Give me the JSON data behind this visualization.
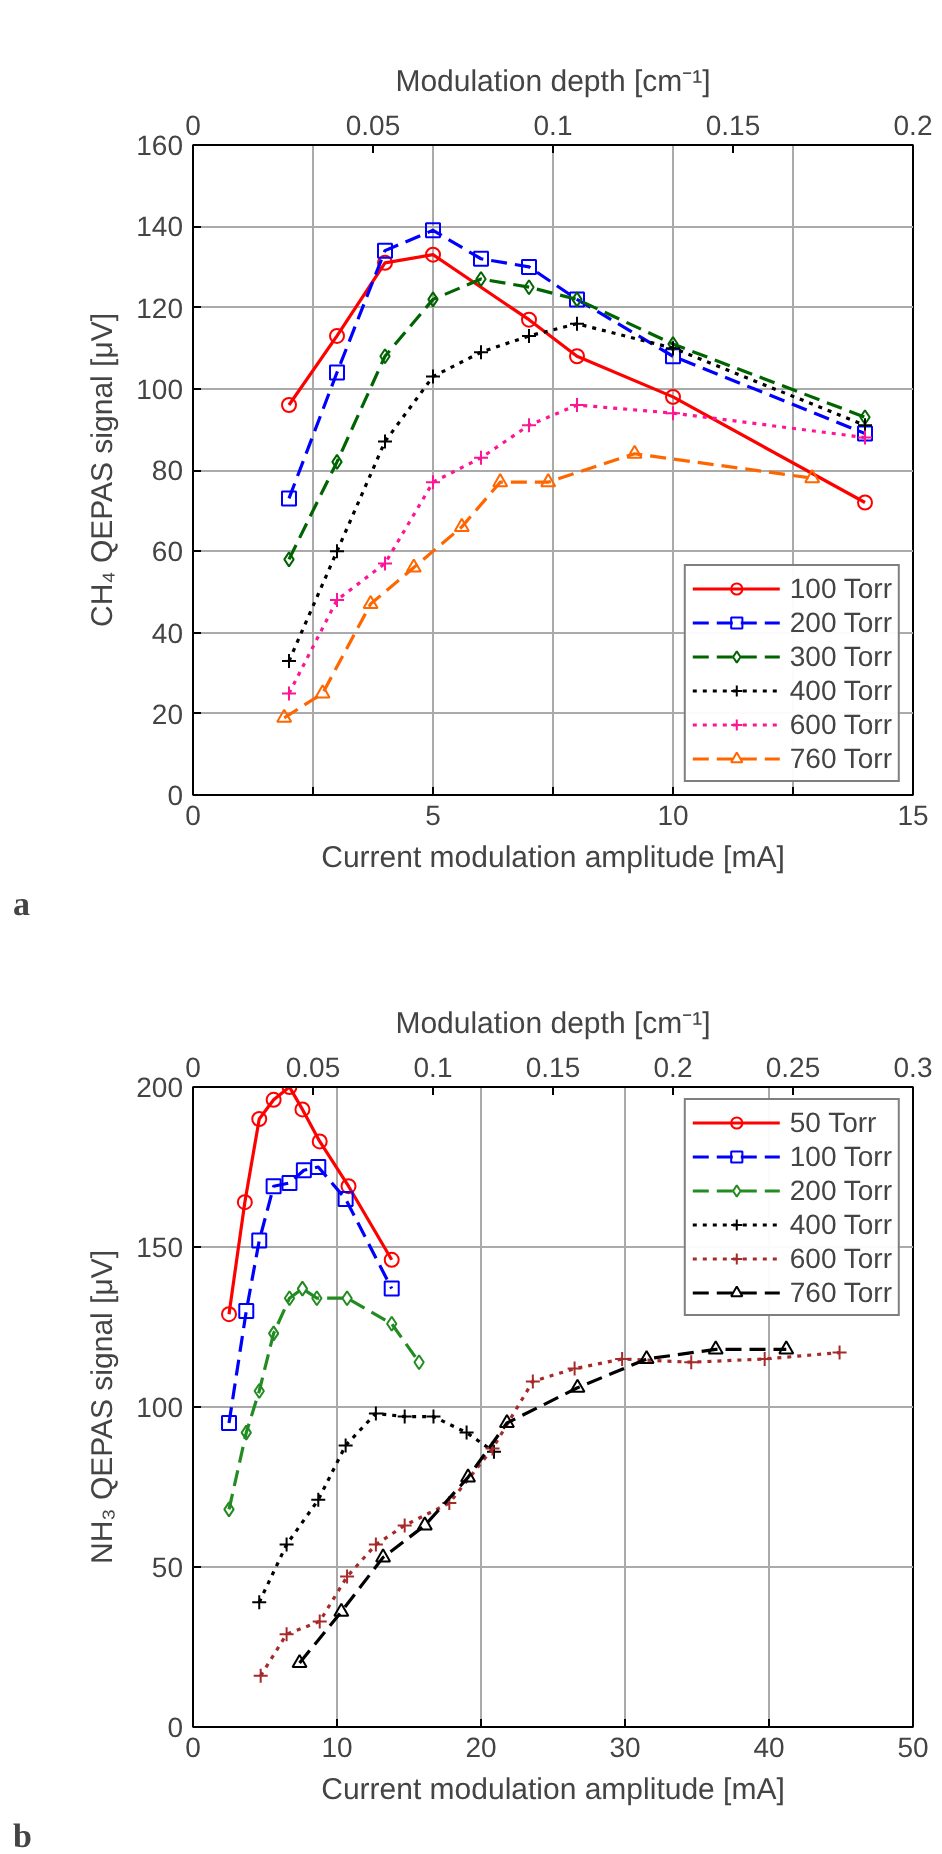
{
  "chart_data": [
    {
      "type": "line",
      "xlabel": "Current modulation amplitude [mA]",
      "ylabel": "CH₄ QEPAS signal [μV]",
      "x2label": "Modulation depth [cm⁻¹]",
      "xlim": [
        0,
        15
      ],
      "xticks": [
        0,
        {
          "value": 2.5,
          "label": null
        },
        5,
        {
          "value": 7.5,
          "label": null
        },
        10,
        {
          "value": 12.5,
          "label": null
        },
        15
      ],
      "ylim": [
        0,
        160
      ],
      "yticks": [
        0,
        20,
        40,
        60,
        80,
        100,
        120,
        140,
        160
      ],
      "x2lim": [
        0,
        0.2
      ],
      "x2ticks": [
        0,
        0.05,
        0.1,
        0.15,
        0.2
      ],
      "grid": true,
      "legend": "bottom right",
      "annotations": [
        "a"
      ],
      "series": [
        {
          "name": "100 Torr",
          "color": "#ff0000",
          "marker": "circle",
          "line_style": "solid",
          "x": [
            2,
            3,
            4,
            5,
            7,
            8,
            10,
            14
          ],
          "values": [
            96,
            113,
            131,
            133,
            117,
            108,
            98,
            72
          ]
        },
        {
          "name": "200 Torr",
          "color": "#0000ff",
          "marker": "square",
          "line_style": "dashed",
          "x": [
            2,
            3,
            4,
            5,
            6,
            7,
            8,
            10,
            14
          ],
          "values": [
            73,
            104,
            134,
            139,
            132,
            130,
            122,
            108,
            89
          ]
        },
        {
          "name": "300 Torr",
          "color": "#006400",
          "marker": "diamond",
          "line_style": "dashed",
          "x": [
            2,
            3,
            4,
            5,
            6,
            7,
            8,
            10,
            14
          ],
          "values": [
            58,
            82,
            108,
            122,
            127,
            125,
            122,
            111,
            93
          ]
        },
        {
          "name": "400 Torr",
          "color": "#000000",
          "marker": "cross",
          "line_style": "dotted",
          "x": [
            2,
            3,
            4,
            5,
            6,
            7,
            8,
            10,
            14
          ],
          "values": [
            33,
            60,
            87,
            103,
            109,
            113,
            116,
            110,
            91
          ]
        },
        {
          "name": "600 Torr",
          "color": "#ff1493",
          "marker": "cross",
          "line_style": "dotted",
          "x": [
            2,
            3,
            4,
            5,
            6,
            7,
            8,
            10,
            14
          ],
          "values": [
            25,
            48,
            57,
            77,
            83,
            91,
            96,
            94,
            88
          ]
        },
        {
          "name": "760 Torr",
          "color": "#ff6600",
          "marker": "triangle",
          "line_style": "dashed",
          "x": [
            1.9,
            2.7,
            3.7,
            4.6,
            5.6,
            6.4,
            7.4,
            9.2,
            12.9
          ],
          "values": [
            19,
            25,
            47,
            56,
            66,
            77,
            77,
            84,
            78
          ]
        }
      ]
    },
    {
      "type": "line",
      "xlabel": "Current modulation amplitude [mA]",
      "ylabel": "NH₃ QEPAS signal [μV]",
      "x2label": "Modulation depth [cm⁻¹]",
      "xlim": [
        0,
        50
      ],
      "xticks": [
        0,
        10,
        20,
        30,
        40,
        50
      ],
      "ylim": [
        0,
        200
      ],
      "yticks": [
        0,
        50,
        100,
        150,
        200
      ],
      "x2lim": [
        0,
        0.3
      ],
      "x2ticks": [
        0,
        0.05,
        0.1,
        0.15,
        0.2,
        0.25,
        0.3
      ],
      "grid": true,
      "legend": "top right",
      "annotations": [
        "b"
      ],
      "series": [
        {
          "name": "50 Torr",
          "color": "#ff0000",
          "marker": "circle",
          "line_style": "solid",
          "x": [
            2.5,
            3.6,
            4.6,
            5.6,
            6.7,
            7.6,
            8.8,
            10.8,
            13.8
          ],
          "values": [
            129,
            164,
            190,
            196,
            200,
            193,
            183,
            169,
            146
          ]
        },
        {
          "name": "100 Torr",
          "color": "#0000ff",
          "marker": "square",
          "line_style": "dashed",
          "x": [
            2.5,
            3.7,
            4.6,
            5.6,
            6.7,
            7.7,
            8.7,
            10.6,
            13.8
          ],
          "values": [
            95,
            130,
            152,
            169,
            170,
            174,
            175,
            165,
            137
          ]
        },
        {
          "name": "200 Torr",
          "color": "#228b22",
          "marker": "diamond",
          "line_style": "dashed",
          "x": [
            2.5,
            3.7,
            4.6,
            5.6,
            6.7,
            7.6,
            8.6,
            10.7,
            13.8,
            15.7
          ],
          "values": [
            68,
            92,
            105,
            123,
            134,
            137,
            134,
            134,
            126,
            114
          ]
        },
        {
          "name": "400 Torr",
          "color": "#000000",
          "marker": "cross",
          "line_style": "dotted",
          "x": [
            4.6,
            6.5,
            8.7,
            10.6,
            12.7,
            14.7,
            16.7,
            19,
            20.9
          ],
          "values": [
            39,
            57,
            71,
            88,
            98,
            97,
            97,
            92,
            86
          ]
        },
        {
          "name": "600 Torr",
          "color": "#a52a2a",
          "marker": "cross",
          "line_style": "dotted",
          "x": [
            4.7,
            6.5,
            8.8,
            10.7,
            12.7,
            14.7,
            17.8,
            20.8,
            23.6,
            26.5,
            29.8,
            34.6,
            39.7,
            44.9
          ],
          "values": [
            16,
            29,
            33,
            47,
            57,
            63,
            70,
            87,
            108,
            112,
            115,
            114,
            115,
            117
          ]
        },
        {
          "name": "760 Torr",
          "color": "#000000",
          "marker": "triangle",
          "line_style": "dashed",
          "x": [
            7.4,
            10.3,
            13.2,
            16.1,
            19.1,
            21.8,
            26.7,
            31.5,
            36.3,
            41.2
          ],
          "values": [
            20,
            36,
            53,
            63,
            78,
            95,
            106,
            115,
            118,
            118
          ]
        }
      ]
    }
  ]
}
